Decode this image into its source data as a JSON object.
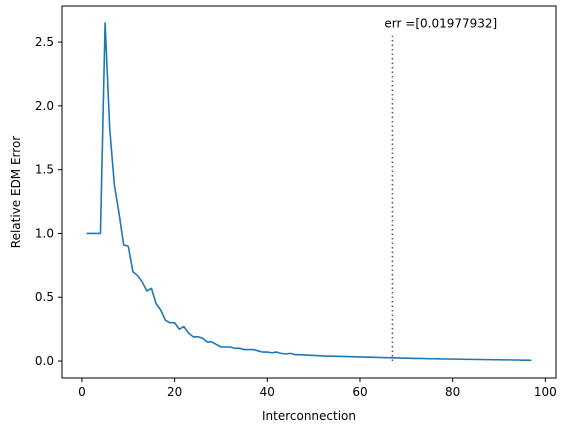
{
  "chart_data": {
    "type": "line",
    "title": "",
    "xlabel": "Interconnection",
    "ylabel": "Relative EDM Error",
    "xlim": [
      -4.3,
      102.3
    ],
    "ylim": [
      -0.133,
      2.783
    ],
    "xticks": [
      0,
      20,
      40,
      60,
      80,
      100
    ],
    "xtick_labels": [
      "0",
      "20",
      "40",
      "60",
      "80",
      "100"
    ],
    "yticks": [
      0.0,
      0.5,
      1.0,
      1.5,
      2.0,
      2.5
    ],
    "ytick_labels": [
      "0.0",
      "0.5",
      "1.0",
      "1.5",
      "2.0",
      "2.5"
    ],
    "grid": false,
    "series": [
      {
        "name": "",
        "color": "#1f77b4",
        "x": [
          1,
          2,
          3,
          4,
          5,
          6,
          7,
          8,
          9,
          10,
          11,
          12,
          13,
          14,
          15,
          16,
          17,
          18,
          19,
          20,
          21,
          22,
          23,
          24,
          25,
          26,
          27,
          28,
          29,
          30,
          31,
          32,
          33,
          34,
          35,
          36,
          37,
          38,
          39,
          40,
          41,
          42,
          43,
          44,
          45,
          46,
          47,
          48,
          49,
          50,
          51,
          52,
          53,
          54,
          55,
          56,
          57,
          58,
          59,
          60,
          61,
          62,
          63,
          64,
          65,
          66,
          67,
          68,
          69,
          70,
          71,
          72,
          73,
          74,
          75,
          76,
          77,
          78,
          79,
          80,
          81,
          82,
          83,
          84,
          85,
          86,
          87,
          88,
          89,
          90,
          91,
          92,
          93,
          94,
          95,
          96,
          97
        ],
        "y": [
          1.0,
          1.0,
          1.0,
          1.0,
          2.65,
          1.82,
          1.38,
          1.16,
          0.91,
          0.9,
          0.7,
          0.67,
          0.62,
          0.55,
          0.57,
          0.45,
          0.4,
          0.32,
          0.3,
          0.3,
          0.25,
          0.27,
          0.22,
          0.19,
          0.19,
          0.18,
          0.15,
          0.15,
          0.13,
          0.11,
          0.11,
          0.11,
          0.1,
          0.1,
          0.09,
          0.09,
          0.09,
          0.08,
          0.07,
          0.07,
          0.065,
          0.07,
          0.06,
          0.055,
          0.06,
          0.05,
          0.05,
          0.048,
          0.046,
          0.044,
          0.042,
          0.04,
          0.039,
          0.038,
          0.037,
          0.036,
          0.035,
          0.034,
          0.033,
          0.032,
          0.031,
          0.03,
          0.029,
          0.028,
          0.027,
          0.026,
          0.025,
          0.024,
          0.023,
          0.022,
          0.021,
          0.02,
          0.02,
          0.019,
          0.018,
          0.018,
          0.017,
          0.016,
          0.016,
          0.015,
          0.015,
          0.014,
          0.013,
          0.013,
          0.012,
          0.012,
          0.011,
          0.011,
          0.01,
          0.01,
          0.009,
          0.009,
          0.008,
          0.008,
          0.007,
          0.007,
          0.006
        ]
      }
    ],
    "annotations": [
      {
        "text": "err =[0.01977932]",
        "vline_x": 67,
        "vline_y_range": [
          0.0,
          2.55
        ],
        "color": "#555555",
        "linestyle": "dotted"
      }
    ]
  }
}
